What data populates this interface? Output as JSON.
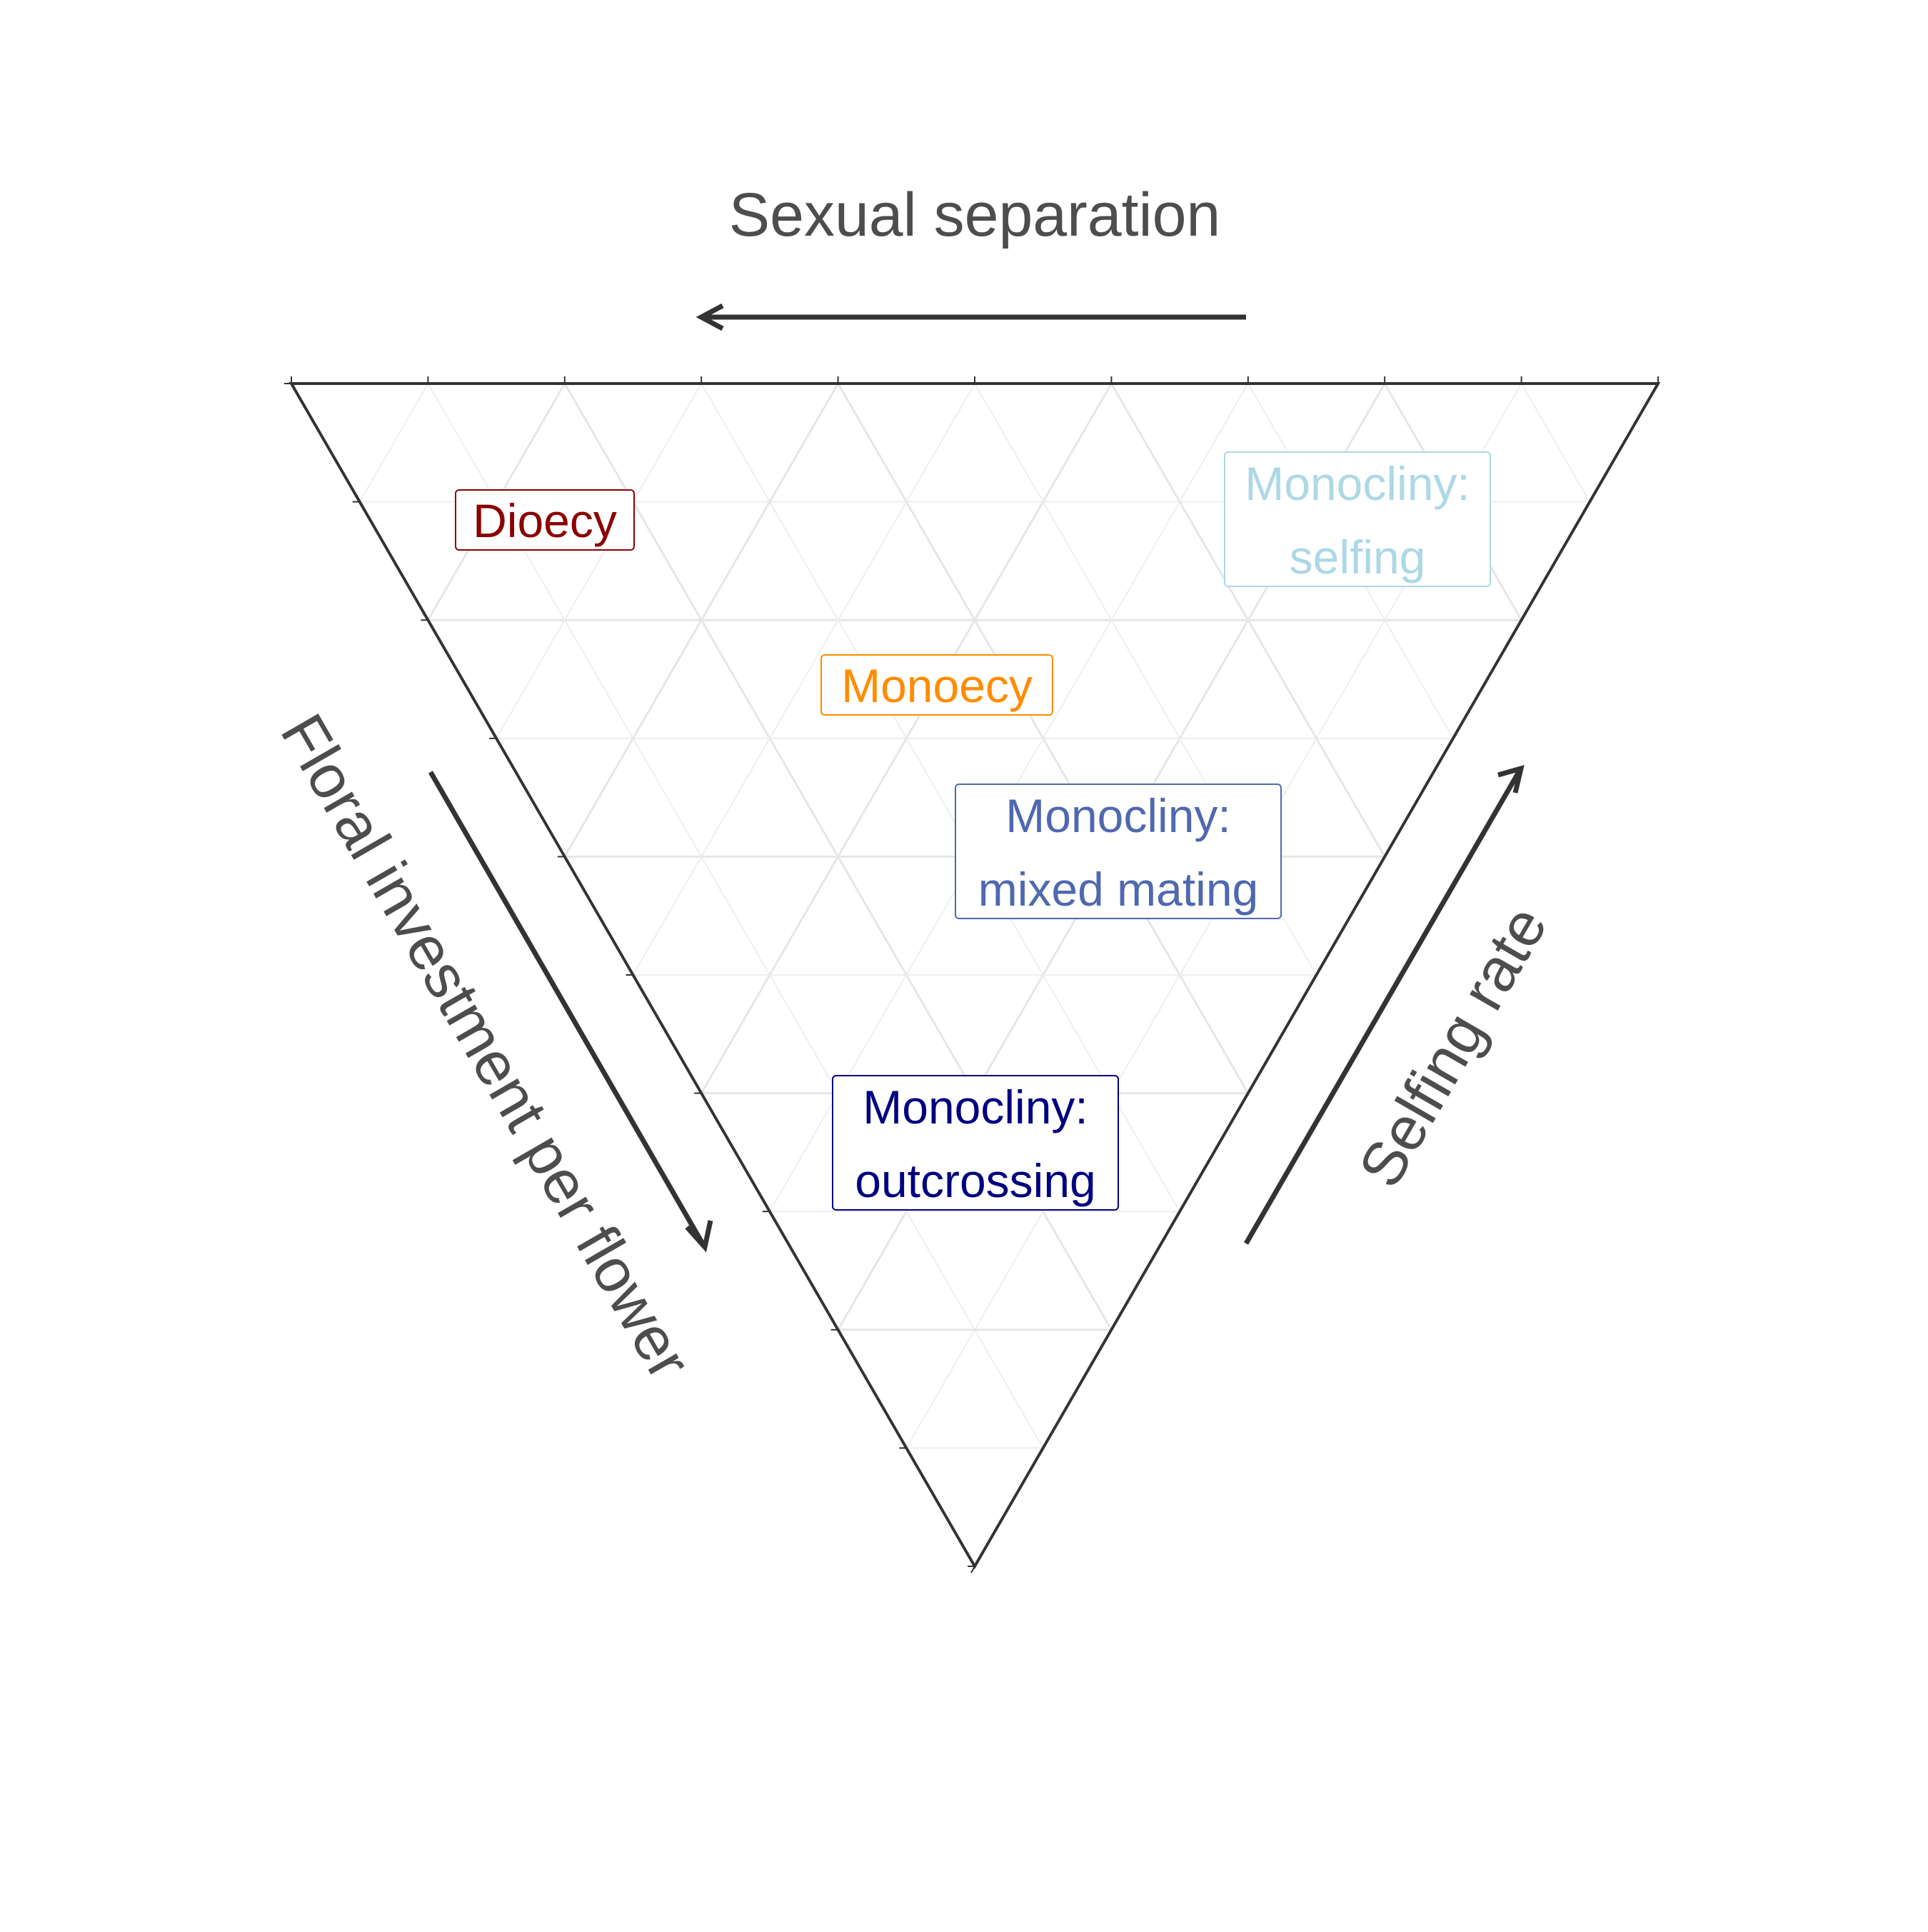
{
  "axes": {
    "top": {
      "label": "Sexual separation"
    },
    "left": {
      "label": "Floral investment per flower"
    },
    "right": {
      "label": "Selfing rate"
    }
  },
  "grid": {
    "divisions": 10,
    "shown": true
  },
  "colors": {
    "background": "#ffffff",
    "frame": "#333333",
    "grid_major": "#e6e6e6",
    "grid_minor": "#eeeeee",
    "axis_text": "#4d4d4d",
    "arrow": "#333333"
  },
  "regions": [
    {
      "id": "dioecy",
      "lines": [
        "Dioecy"
      ],
      "color": "#8b0000"
    },
    {
      "id": "monoecy",
      "lines": [
        "Monoecy"
      ],
      "color": "#ff8c00"
    },
    {
      "id": "monocliny-selfing",
      "lines": [
        "Monocliny:",
        "selfing"
      ],
      "color": "#add8e6"
    },
    {
      "id": "monocliny-mixed",
      "lines": [
        "Monocliny:",
        "mixed mating"
      ],
      "color": "#5068b0"
    },
    {
      "id": "monocliny-outcrossing",
      "lines": [
        "Monocliny:",
        "outcrossing"
      ],
      "color": "#000080"
    }
  ]
}
